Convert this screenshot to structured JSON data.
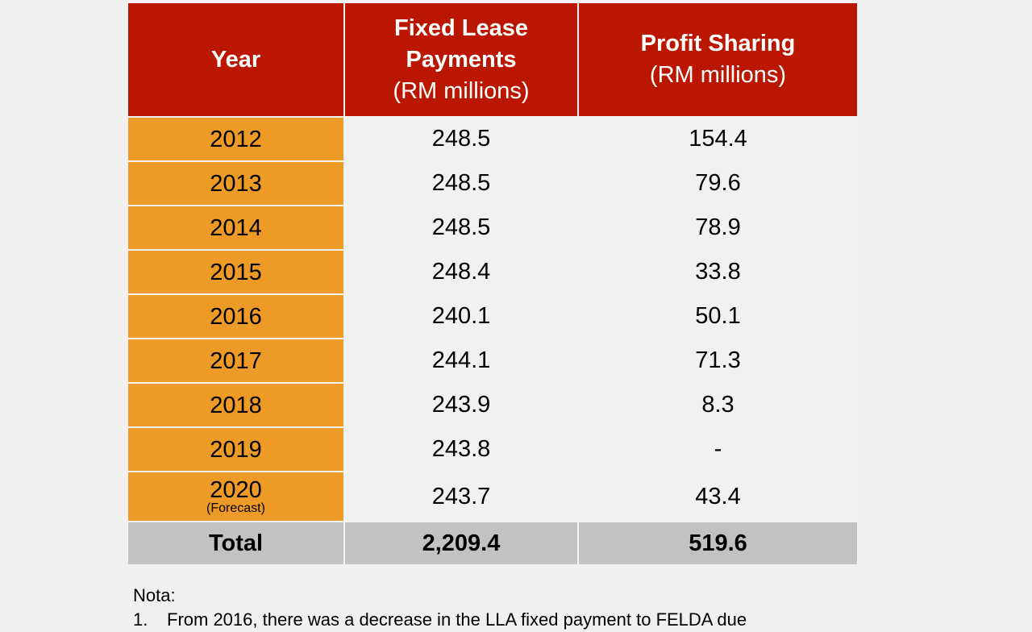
{
  "header": {
    "col1": "Year",
    "col2_line1": "Fixed Lease",
    "col2_line2": "Payments",
    "col2_unit": "(RM millions)",
    "col3_line1": "Profit Sharing",
    "col3_unit": "(RM millions)"
  },
  "rows": [
    {
      "year": "2012",
      "note": "",
      "fixed": "248.5",
      "profit": "154.4"
    },
    {
      "year": "2013",
      "note": "",
      "fixed": "248.5",
      "profit": "79.6"
    },
    {
      "year": "2014",
      "note": "",
      "fixed": "248.5",
      "profit": "78.9"
    },
    {
      "year": "2015",
      "note": "",
      "fixed": "248.4",
      "profit": "33.8"
    },
    {
      "year": "2016",
      "note": "",
      "fixed": "240.1",
      "profit": "50.1"
    },
    {
      "year": "2017",
      "note": "",
      "fixed": "244.1",
      "profit": "71.3"
    },
    {
      "year": "2018",
      "note": "",
      "fixed": "243.9",
      "profit": "8.3"
    },
    {
      "year": "2019",
      "note": "",
      "fixed": "243.8",
      "profit": "-"
    },
    {
      "year": "2020",
      "note": "(Forecast)",
      "fixed": "243.7",
      "profit": "43.4"
    }
  ],
  "total": {
    "label": "Total",
    "fixed": "2,209.4",
    "profit": "519.6"
  },
  "notes": {
    "title": "Nota:",
    "items": [
      {
        "num": "1.",
        "text": "From 2016, there was a decrease in the LLA fixed payment to FELDA due"
      }
    ]
  },
  "colors": {
    "header": "#bb1600",
    "year_col": "#ee9a26",
    "total_row": "#c2c2c2",
    "background": "#f0f0f0"
  }
}
